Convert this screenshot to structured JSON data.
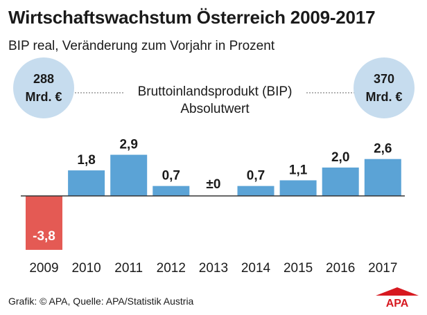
{
  "header": {
    "title": "Wirtschaftswachstum Österreich 2009-2017",
    "subtitle": "BIP real, Veränderung zum Vorjahr in Prozent"
  },
  "bip_absolute": {
    "label_line1": "Bruttoinlandsprodukt (BIP)",
    "label_line2": "Absolutwert",
    "left_value": "288",
    "left_unit": "Mrd. €",
    "right_value": "370",
    "right_unit": "Mrd. €"
  },
  "chart_data": {
    "type": "bar",
    "title": "Wirtschaftswachstum Österreich 2009-2017",
    "subtitle": "BIP real, Veränderung zum Vorjahr in Prozent",
    "xlabel": "",
    "ylabel": "",
    "categories": [
      "2009",
      "2010",
      "2011",
      "2012",
      "2013",
      "2014",
      "2015",
      "2016",
      "2017"
    ],
    "values": [
      -3.8,
      1.8,
      2.9,
      0.7,
      0,
      0.7,
      1.1,
      2.0,
      2.6
    ],
    "labels": [
      "-3,8",
      "1,8",
      "2,9",
      "0,7",
      "±0",
      "0,7",
      "1,1",
      "2,0",
      "2,6"
    ],
    "ylim": [
      -3.8,
      2.9
    ],
    "grid": false,
    "colors": {
      "positive": "#5ba3d6",
      "negative": "#e45a54",
      "circle": "#c6dcee",
      "baseline": "#333333"
    }
  },
  "footer": {
    "source": "Grafik: © APA, Quelle: APA/Statistik Austria"
  },
  "logo": {
    "text": "APA",
    "color": "#d71920"
  }
}
